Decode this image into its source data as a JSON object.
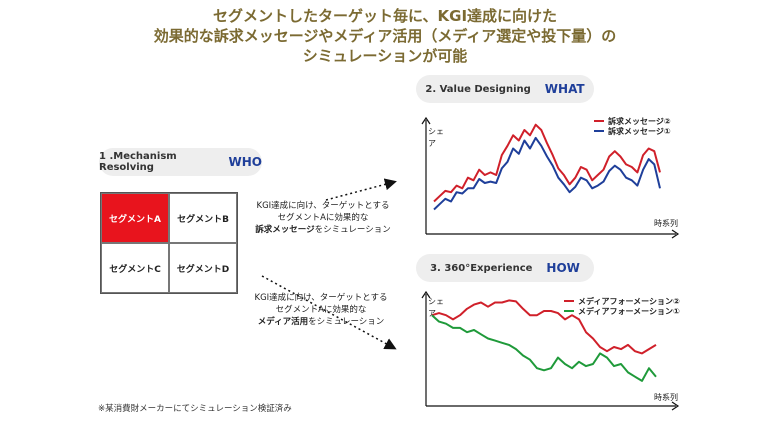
{
  "title": {
    "line1": "セグメントしたターゲット毎に、KGI達成に向けた",
    "line2": "効果的な訴求メッセージやメディア活用（メディア選定や投下量）の",
    "line3": "シミュレーションが可能"
  },
  "mechanism": {
    "label": "1 .Mechanism Resolving",
    "keyword": "WHO"
  },
  "value": {
    "label": "2. Value Designing",
    "keyword": "WHAT"
  },
  "experience": {
    "label": "3. 360°Experience",
    "keyword": "HOW"
  },
  "segments": [
    "セグメントA",
    "セグメントB",
    "セグメントC",
    "セグメントD"
  ],
  "desc1": {
    "l1": "KGI達成に向け、ターゲットとする",
    "l2": "セグメントAに効果的な",
    "bold": "訴求メッセージ",
    "tail": "をシミュレーション"
  },
  "desc2": {
    "l1": "KGI達成に向け、ターゲットとする",
    "l2": "セグメントAに効果的な",
    "bold": "メディア活用",
    "tail": "をシミュレーション"
  },
  "note": "※某消費財メーカーにてシミュレーション検証済み",
  "colors": {
    "title": "#7b6a32",
    "accent_red": "#e8141d",
    "navy": "#1f3f9a",
    "red_line": "#d0202a",
    "green_line": "#1f9a3a",
    "blue_line": "#1f3f9a"
  },
  "chart_data": [
    {
      "type": "line",
      "ylabel": "シェア",
      "xlabel": "時系列",
      "series": [
        {
          "name": "訴求メッセージ②",
          "color": "#d0202a",
          "values": [
            20,
            24,
            28,
            27,
            32,
            30,
            38,
            36,
            44,
            40,
            42,
            40,
            55,
            62,
            70,
            66,
            74,
            70,
            78,
            74,
            64,
            55,
            45,
            40,
            33,
            38,
            46,
            44,
            36,
            40,
            44,
            54,
            58,
            54,
            48,
            46,
            42,
            55,
            60,
            58,
            42
          ]
        },
        {
          "name": "訴求メッセージ①",
          "color": "#1f3f9a",
          "values": [
            14,
            18,
            22,
            20,
            27,
            26,
            30,
            30,
            37,
            34,
            35,
            34,
            45,
            50,
            60,
            56,
            66,
            60,
            68,
            62,
            54,
            47,
            38,
            33,
            27,
            31,
            38,
            36,
            30,
            32,
            35,
            43,
            47,
            44,
            38,
            36,
            32,
            44,
            52,
            48,
            30
          ]
        }
      ]
    },
    {
      "type": "line",
      "ylabel": "シェア",
      "xlabel": "時系列",
      "series": [
        {
          "name": "メディアフォーメーション②",
          "color": "#d0202a",
          "values": [
            80,
            82,
            80,
            76,
            80,
            86,
            90,
            92,
            88,
            92,
            92,
            94,
            93,
            86,
            80,
            80,
            84,
            84,
            82,
            76,
            80,
            76,
            64,
            58,
            50,
            46,
            50,
            48,
            52,
            46,
            44,
            48,
            52
          ]
        },
        {
          "name": "メディアフォーメーション①",
          "color": "#1f9a3a",
          "values": [
            80,
            74,
            72,
            68,
            68,
            64,
            66,
            62,
            58,
            56,
            54,
            52,
            48,
            42,
            38,
            30,
            28,
            30,
            40,
            34,
            30,
            36,
            32,
            34,
            44,
            40,
            32,
            34,
            26,
            22,
            18,
            30,
            22
          ]
        }
      ]
    }
  ]
}
